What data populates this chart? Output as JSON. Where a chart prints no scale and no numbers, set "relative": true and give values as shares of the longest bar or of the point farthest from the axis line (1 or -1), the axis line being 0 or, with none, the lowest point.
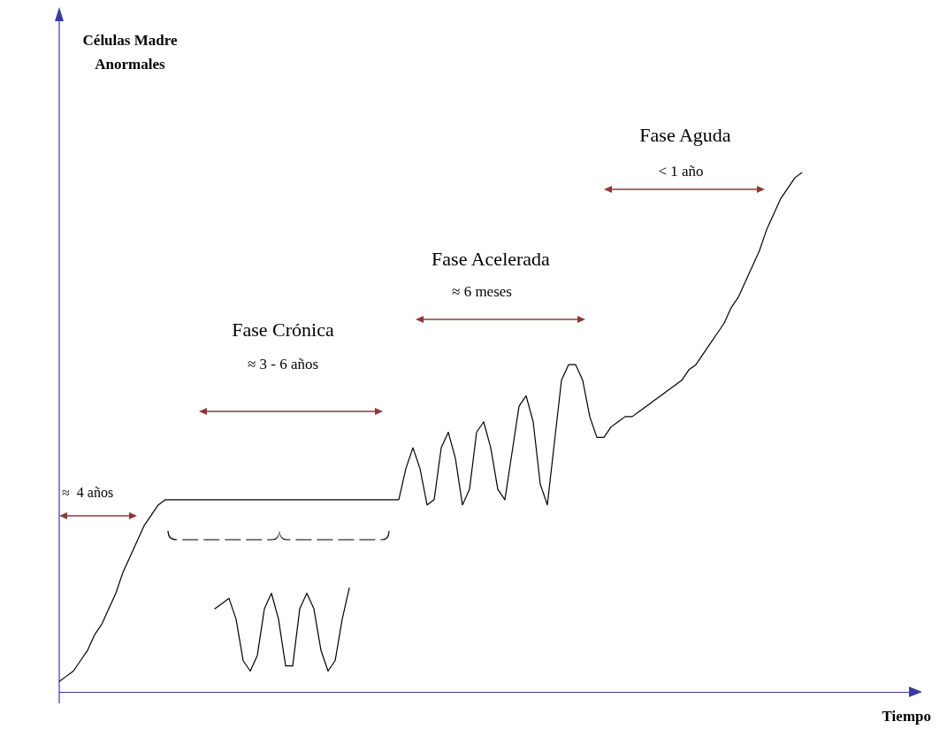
{
  "chart_data": {
    "type": "line",
    "relative": true,
    "xlabel": "Tiempo",
    "marker": "none",
    "line_style": "solid",
    "categories": [
      null,
      null,
      null,
      null,
      null,
      null,
      null,
      null,
      null,
      null,
      null,
      null,
      null,
      null,
      null,
      null,
      null,
      null,
      null,
      null,
      null,
      null,
      null,
      null,
      null,
      null,
      null,
      null,
      null,
      null,
      null,
      null,
      null,
      null,
      null,
      null,
      null,
      null,
      null,
      null,
      null,
      null,
      null,
      null,
      null,
      null,
      null,
      null,
      null,
      null,
      null,
      null,
      null,
      null,
      null,
      null,
      null,
      null,
      null,
      null,
      null,
      null,
      null,
      null,
      null,
      null,
      null,
      null,
      null,
      null,
      null,
      null,
      null,
      null,
      null,
      null,
      null,
      null,
      null,
      null,
      null,
      null,
      null,
      null,
      null,
      null,
      null,
      null,
      null,
      null,
      null,
      null,
      null,
      null,
      null,
      null,
      null,
      null,
      null,
      null,
      null,
      null,
      null,
      null,
      null,
      null,
      null,
      null,
      null,
      null,
      null,
      null,
      null,
      null,
      null,
      null,
      null,
      null,
      null,
      null,
      null,
      null
    ],
    "series": [
      {
        "color": "#000000",
        "values": [
          0.02,
          0.03,
          0.04,
          0.06,
          0.08,
          0.11,
          0.13,
          0.16,
          0.19,
          0.23,
          0.26,
          0.29,
          0.32,
          0.34,
          0.36,
          0.37,
          0.37,
          0.37,
          0.37,
          0.37,
          0.37,
          0.37,
          0.37,
          0.37,
          0.37,
          0.37,
          0.37,
          0.37,
          0.37,
          0.37,
          0.37,
          0.37,
          0.37,
          0.37,
          0.37,
          0.37,
          0.37,
          0.37,
          0.37,
          0.37,
          0.37,
          0.37,
          0.37,
          0.37,
          0.37,
          0.37,
          0.37,
          0.37,
          0.37,
          0.43,
          0.47,
          0.43,
          0.36,
          0.37,
          0.47,
          0.5,
          0.45,
          0.36,
          0.39,
          0.5,
          0.52,
          0.47,
          0.39,
          0.37,
          0.46,
          0.55,
          0.57,
          0.52,
          0.4,
          0.36,
          0.48,
          0.6,
          0.63,
          0.63,
          0.6,
          0.53,
          0.49,
          0.49,
          0.51,
          0.52,
          0.53,
          0.53,
          0.54,
          0.55,
          0.56,
          0.57,
          0.58,
          0.59,
          0.6,
          0.62,
          0.63,
          0.65,
          0.67,
          0.69,
          0.71,
          0.74,
          0.76,
          0.79,
          0.82,
          0.85,
          0.89,
          0.92,
          0.95,
          0.97,
          0.99,
          1.0,
          null,
          null,
          null,
          null,
          null,
          null,
          null,
          null,
          null,
          null,
          null,
          null,
          null,
          null,
          null,
          null
        ]
      },
      {
        "color": "#000000",
        "values": [
          null,
          null,
          null,
          null,
          null,
          null,
          null,
          null,
          null,
          null,
          null,
          null,
          null,
          null,
          null,
          null,
          null,
          null,
          null,
          null,
          null,
          null,
          0.16,
          0.17,
          0.18,
          0.14,
          0.06,
          0.04,
          0.07,
          0.16,
          0.19,
          0.14,
          0.05,
          0.05,
          0.16,
          0.19,
          0.16,
          0.08,
          0.04,
          0.06,
          0.14,
          0.2,
          null,
          null,
          null,
          null,
          null,
          null,
          null,
          null,
          null,
          null,
          null,
          null,
          null,
          null,
          null,
          null,
          null,
          null,
          null,
          null,
          null,
          null,
          null,
          null,
          null,
          null,
          null,
          null,
          null,
          null,
          null,
          null,
          null,
          null,
          null,
          null,
          null,
          null,
          null,
          null,
          null,
          null,
          null,
          null,
          null,
          null,
          null,
          null,
          null,
          null,
          null,
          null,
          null,
          null,
          null,
          null,
          null,
          null,
          null,
          null,
          null,
          null,
          null,
          null,
          null,
          null,
          null,
          null,
          null,
          null,
          null,
          null,
          null,
          null,
          null,
          null,
          null,
          null,
          null,
          null
        ]
      }
    ],
    "annotations": [
      "Células Madre Anormales",
      "≈  4 años",
      "Fase Crónica",
      "≈ 3 - 6 años",
      "Fase Acelerada",
      "≈ 6 meses",
      "Fase Aguda",
      "< 1 año"
    ]
  }
}
